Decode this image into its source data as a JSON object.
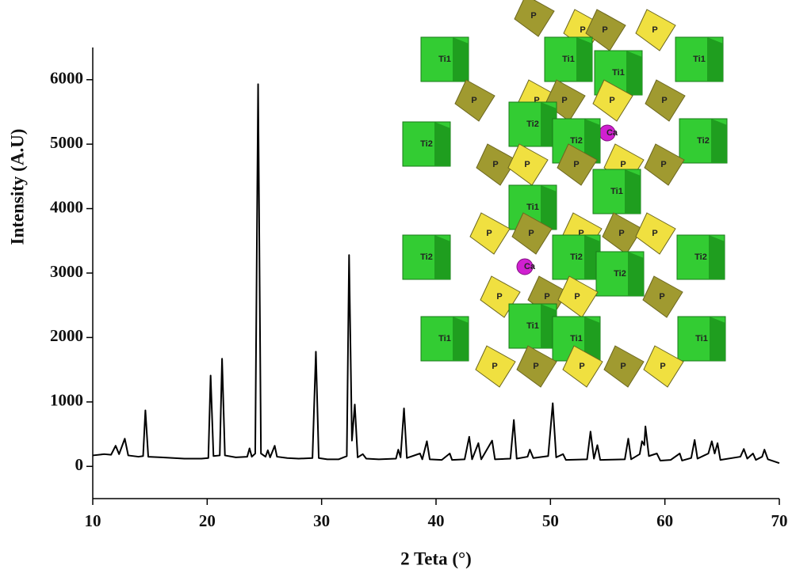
{
  "chart_data": {
    "type": "line",
    "xlabel": "2 Teta (°)",
    "ylabel": "Intensity (A.U)",
    "color": "#000000",
    "xlim": [
      10,
      70
    ],
    "xticks": [
      10,
      20,
      30,
      40,
      50,
      60,
      70
    ],
    "ylim": [
      -500,
      6500
    ],
    "yticks": [
      0,
      1000,
      2000,
      3000,
      4000,
      5000,
      6000
    ],
    "x": [
      10,
      11,
      11.6,
      12.0,
      12.3,
      12.8,
      13.1,
      14.0,
      14.4,
      14.6,
      14.85,
      16,
      18,
      19.5,
      20.1,
      20.3,
      20.55,
      21.1,
      21.3,
      21.55,
      22.5,
      23.5,
      23.7,
      23.9,
      24.2,
      24.45,
      24.7,
      25.1,
      25.3,
      25.5,
      25.9,
      26.1,
      27,
      28,
      29.2,
      29.5,
      29.75,
      30.5,
      31.5,
      32.2,
      32.4,
      32.65,
      32.9,
      33.15,
      33.6,
      33.9,
      35,
      36.5,
      36.7,
      36.9,
      37.2,
      37.45,
      38.6,
      38.8,
      39.2,
      39.45,
      40.5,
      41.2,
      41.4,
      42.5,
      42.9,
      43.15,
      43.7,
      43.95,
      44.9,
      45.15,
      46.5,
      46.8,
      47.05,
      48.0,
      48.2,
      48.5,
      49.8,
      50.2,
      50.5,
      51.1,
      51.35,
      53.2,
      53.5,
      53.8,
      54.1,
      54.35,
      56.5,
      56.8,
      57.05,
      57.8,
      58.0,
      58.2,
      58.3,
      58.6,
      59.3,
      59.6,
      60.5,
      61.3,
      61.5,
      62.3,
      62.6,
      62.85,
      63.8,
      64.1,
      64.35,
      64.6,
      64.85,
      66.6,
      66.9,
      67.2,
      67.7,
      67.95,
      68.5,
      68.7,
      69.0,
      70
    ],
    "values": [
      170,
      190,
      180,
      320,
      190,
      430,
      170,
      150,
      160,
      870,
      150,
      140,
      120,
      120,
      130,
      1410,
      160,
      170,
      1670,
      170,
      140,
      150,
      280,
      150,
      200,
      5930,
      200,
      150,
      250,
      140,
      320,
      150,
      130,
      120,
      130,
      1780,
      130,
      110,
      110,
      160,
      3280,
      400,
      960,
      140,
      190,
      120,
      110,
      120,
      260,
      140,
      900,
      130,
      200,
      110,
      390,
      110,
      100,
      200,
      100,
      110,
      460,
      110,
      360,
      110,
      400,
      110,
      120,
      720,
      120,
      150,
      260,
      130,
      160,
      980,
      140,
      190,
      100,
      110,
      540,
      120,
      330,
      100,
      110,
      430,
      110,
      190,
      390,
      330,
      620,
      160,
      200,
      90,
      100,
      200,
      90,
      130,
      410,
      120,
      200,
      390,
      200,
      360,
      100,
      150,
      270,
      120,
      200,
      100,
      150,
      260,
      110,
      50
    ]
  },
  "inset": {
    "labels": [
      "P",
      "P",
      "P",
      "P",
      "Ti1",
      "Ti1",
      "Ti1",
      "Ti1",
      "P",
      "P",
      "P",
      "P",
      "P",
      "Ti2",
      "Ca",
      "Ti2",
      "Ti2",
      "Ti2",
      "P",
      "P",
      "P",
      "P",
      "P",
      "Ti1",
      "Ti1",
      "P",
      "P",
      "P",
      "P",
      "P",
      "Ti2",
      "Ca",
      "Ti2",
      "Ti2",
      "Ti2",
      "P",
      "P",
      "P",
      "P",
      "Ti1",
      "Ti1",
      "Ti1",
      "Ti1",
      "P",
      "P",
      "P",
      "P",
      "P"
    ]
  }
}
